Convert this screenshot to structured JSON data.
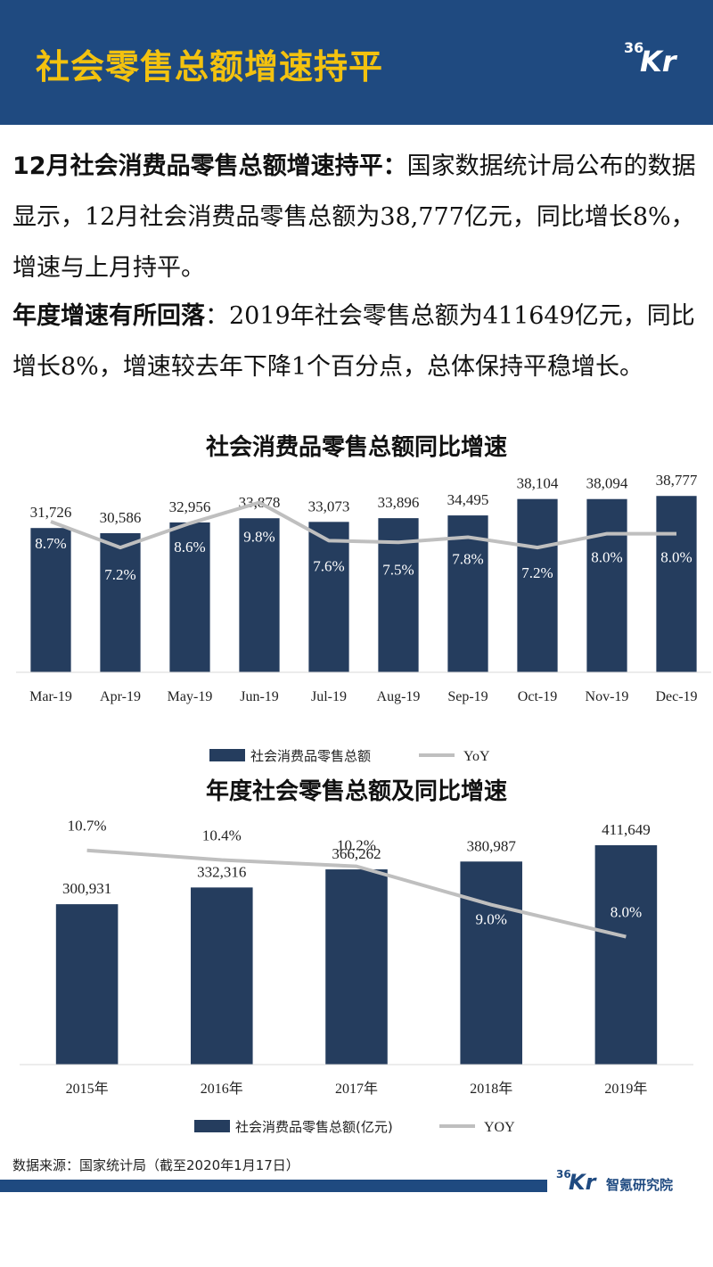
{
  "header": {
    "title": "社会零售总额增速持平",
    "logo_num": "36",
    "logo_k": "Kr"
  },
  "paragraph1": {
    "bold": "12月社会消费品零售总额增速持平：",
    "text": "国家数据统计局公布的数据显示，12月社会消费品零售总额为38,777亿元，同比增长8%，增速与上月持平。"
  },
  "paragraph2": {
    "bold": "年度增速有所回落",
    "text": "：2019年社会零售总额为411649亿元，同比增长8%，增速较去年下降1个百分点，总体保持平稳增长。"
  },
  "chart_data": [
    {
      "type": "bar",
      "title": "社会消费品零售总额同比增速",
      "categories": [
        "Mar-19",
        "Apr-19",
        "May-19",
        "Jun-19",
        "Jul-19",
        "Aug-19",
        "Sep-19",
        "Oct-19",
        "Nov-19",
        "Dec-19"
      ],
      "series": [
        {
          "name": "社会消费品零售总额",
          "type": "bar",
          "values": [
            31726,
            30586,
            32956,
            33878,
            33073,
            33896,
            34495,
            38104,
            38094,
            38777
          ],
          "labels": [
            "31,726",
            "30,586",
            "32,956",
            "33,878",
            "33,073",
            "33,896",
            "34,495",
            "38,104",
            "38,094",
            "38,777"
          ]
        },
        {
          "name": "YoY",
          "type": "line",
          "values": [
            8.7,
            7.2,
            8.6,
            9.8,
            7.6,
            7.5,
            7.8,
            7.2,
            8.0,
            8.0
          ],
          "labels": [
            "8.7%",
            "7.2%",
            "8.6%",
            "9.8%",
            "7.6%",
            "7.5%",
            "7.8%",
            "7.2%",
            "8.0%",
            "8.0%"
          ]
        }
      ],
      "ylim": [
        0,
        40000
      ],
      "y2lim": [
        0,
        10.5
      ],
      "grid": false,
      "legend": "bottom",
      "colors": {
        "bar": "#253d5e",
        "line": "#bfbfbf"
      }
    },
    {
      "type": "bar",
      "title": "年度社会零售总额及同比增速",
      "categories": [
        "2015年",
        "2016年",
        "2017年",
        "2018年",
        "2019年"
      ],
      "series": [
        {
          "name": "社会消费品零售总额(亿元)",
          "type": "bar",
          "values": [
            300931,
            332316,
            366262,
            380987,
            411649
          ],
          "labels": [
            "300,931",
            "332,316",
            "366,262",
            "380,987",
            "411,649"
          ]
        },
        {
          "name": "YOY",
          "type": "line",
          "values": [
            10.7,
            10.4,
            10.2,
            9.0,
            8.0
          ],
          "labels": [
            "10.7%",
            "10.4%",
            "10.2%",
            "9.0%",
            "8.0%"
          ]
        }
      ],
      "ylim": [
        0,
        450000
      ],
      "y2lim": [
        4,
        11.5
      ],
      "grid": false,
      "legend": "bottom",
      "colors": {
        "bar": "#253d5e",
        "line": "#bfbfbf"
      }
    }
  ],
  "source": "数据来源：国家统计局（截至2020年1月17日）",
  "footer": {
    "logo_num": "36",
    "logo_k": "Kr",
    "label": "智氪研究院"
  }
}
